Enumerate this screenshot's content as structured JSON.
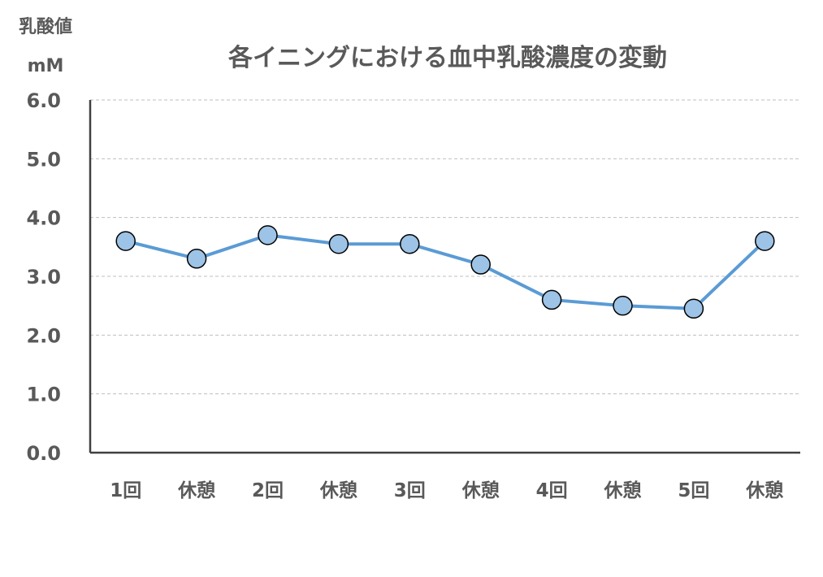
{
  "chart_data": {
    "type": "line",
    "title": "各イニングにおける血中乳酸濃度の変動",
    "ylabel_line1": "乳酸値",
    "ylabel_line2": "mM",
    "xlabel": "",
    "categories": [
      "1回",
      "休憩",
      "2回",
      "休憩",
      "3回",
      "休憩",
      "4回",
      "休憩",
      "5回",
      "休憩"
    ],
    "series": [
      {
        "name": "血中乳酸濃度",
        "values": [
          3.6,
          3.3,
          3.7,
          3.55,
          3.55,
          3.2,
          2.6,
          2.5,
          2.45,
          3.6
        ]
      }
    ],
    "ylim": [
      0,
      6
    ],
    "yticks": [
      "0.0",
      "1.0",
      "2.0",
      "3.0",
      "4.0",
      "5.0",
      "6.0"
    ],
    "ytick_values": [
      0,
      1,
      2,
      3,
      4,
      5,
      6
    ],
    "grid": true,
    "grid_style": "dashed",
    "line_color": "#5b9bd5",
    "marker_fill": "#9dc3e6",
    "marker_stroke": "#000000",
    "axis_color": "#404040",
    "grid_color": "#bfbfbf",
    "text_color": "#595959"
  }
}
